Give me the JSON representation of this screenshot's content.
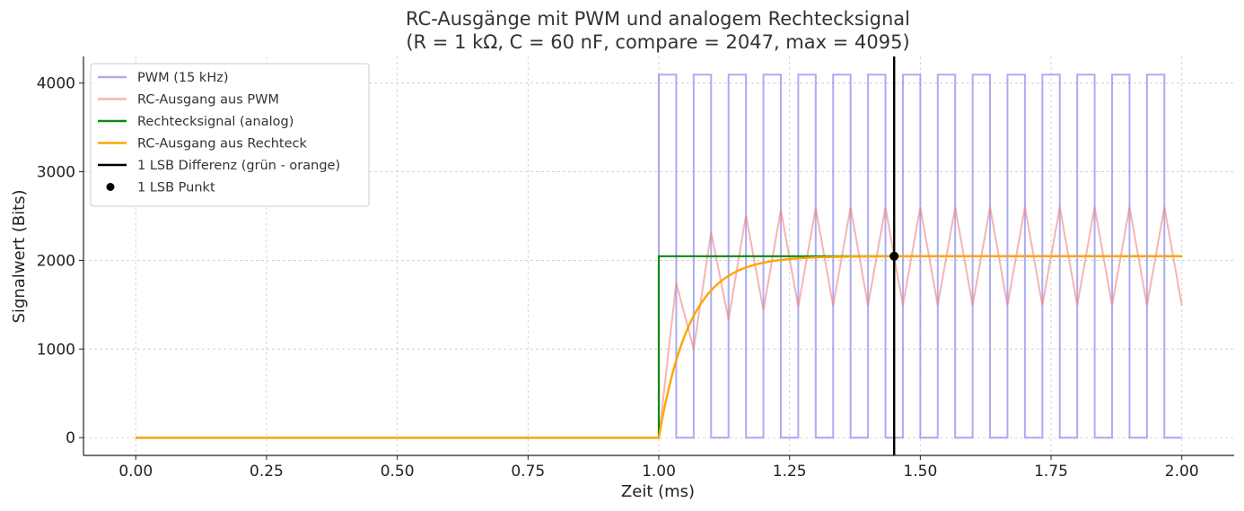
{
  "chart_data": {
    "type": "line",
    "title_line1": "RC-Ausgänge mit PWM und analogem Rechtecksignal",
    "title_line2": "(R = 1 kΩ, C = 60 nF, compare = 2047, max = 4095)",
    "xlabel": "Zeit (ms)",
    "ylabel": "Signalwert (Bits)",
    "xlim": [
      -0.1,
      2.1
    ],
    "ylim": [
      -200,
      4300
    ],
    "xticks": [
      0.0,
      0.25,
      0.5,
      0.75,
      1.0,
      1.25,
      1.5,
      1.75,
      2.0
    ],
    "xtick_labels": [
      "0.00",
      "0.25",
      "0.50",
      "0.75",
      "1.00",
      "1.25",
      "1.50",
      "1.75",
      "2.00"
    ],
    "yticks": [
      0,
      1000,
      2000,
      3000,
      4000
    ],
    "ytick_labels": [
      "0",
      "1000",
      "2000",
      "3000",
      "4000"
    ],
    "grid": true,
    "legend_position": "top-left",
    "params": {
      "R_ohm": 1000,
      "C_farad": 6e-08,
      "tau_ms": 0.06,
      "pwm_frequency_hz": 15000,
      "compare": 2047,
      "max": 4095,
      "step_time_ms": 1.0,
      "end_time_ms": 2.0
    },
    "series": [
      {
        "key": "pwm",
        "name": "PWM (15 kHz)",
        "color": "#7f7ff0",
        "opacity": 0.65
      },
      {
        "key": "rc_pwm",
        "name": "RC-Ausgang aus PWM",
        "color": "#f08080",
        "opacity": 0.6
      },
      {
        "key": "square",
        "name": "Rechtecksignal (analog)",
        "color": "#118811",
        "opacity": 1
      },
      {
        "key": "rc_square",
        "name": "RC-Ausgang aus Rechteck",
        "color": "#ffa500",
        "opacity": 1
      },
      {
        "key": "lsb_line",
        "name": "1 LSB Differenz (grün - orange)",
        "color": "#000000",
        "opacity": 1
      },
      {
        "key": "lsb_point",
        "name": "1 LSB Punkt",
        "color": "#000000",
        "opacity": 1
      }
    ],
    "lsb_marker": {
      "x": 1.45,
      "y": 2047
    }
  }
}
